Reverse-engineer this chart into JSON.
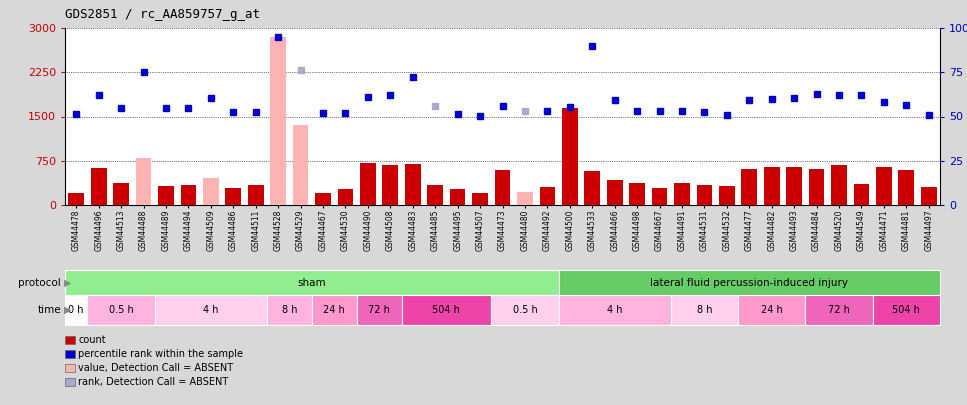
{
  "title": "GDS2851 / rc_AA859757_g_at",
  "samples": [
    "GSM44478",
    "GSM44496",
    "GSM44513",
    "GSM44488",
    "GSM44489",
    "GSM44494",
    "GSM44509",
    "GSM44486",
    "GSM44511",
    "GSM44528",
    "GSM44529",
    "GSM44467",
    "GSM44530",
    "GSM44490",
    "GSM44508",
    "GSM44483",
    "GSM44485",
    "GSM44495",
    "GSM44507",
    "GSM44473",
    "GSM44480",
    "GSM44492",
    "GSM44500",
    "GSM44533",
    "GSM44466",
    "GSM44498",
    "GSM44667",
    "GSM44491",
    "GSM44531",
    "GSM44532",
    "GSM44477",
    "GSM44482",
    "GSM44493",
    "GSM44484",
    "GSM44520",
    "GSM44549",
    "GSM44471",
    "GSM44481",
    "GSM44497"
  ],
  "count_values": [
    200,
    620,
    370,
    800,
    320,
    340,
    450,
    290,
    340,
    2850,
    1350,
    210,
    270,
    720,
    680,
    700,
    340,
    270,
    210,
    600,
    220,
    310,
    1650,
    580,
    420,
    380,
    290,
    370,
    340,
    320,
    610,
    640,
    650,
    610,
    680,
    360,
    650,
    600,
    300
  ],
  "absent_count": [
    false,
    false,
    false,
    true,
    false,
    false,
    true,
    false,
    false,
    true,
    true,
    false,
    false,
    false,
    false,
    false,
    false,
    false,
    false,
    false,
    true,
    false,
    false,
    false,
    false,
    false,
    false,
    false,
    false,
    false,
    false,
    false,
    false,
    false,
    false,
    false,
    false,
    false,
    false
  ],
  "rank_values": [
    1540,
    1870,
    1650,
    2250,
    1650,
    1650,
    1820,
    1570,
    1570,
    2850,
    2290,
    1560,
    1560,
    1830,
    1870,
    2170,
    1680,
    1550,
    1510,
    1680,
    1590,
    1590,
    1660,
    2700,
    1780,
    1600,
    1600,
    1600,
    1570,
    1530,
    1780,
    1790,
    1810,
    1880,
    1870,
    1860,
    1740,
    1700,
    1530
  ],
  "absent_rank": [
    false,
    false,
    false,
    false,
    false,
    false,
    false,
    false,
    false,
    false,
    true,
    false,
    false,
    false,
    false,
    false,
    true,
    false,
    false,
    false,
    true,
    false,
    false,
    false,
    false,
    false,
    false,
    false,
    false,
    false,
    false,
    false,
    false,
    false,
    false,
    false,
    false,
    false,
    false
  ],
  "protocol_groups": [
    {
      "label": "sham",
      "start": 0,
      "end": 22,
      "color": "#90EE90"
    },
    {
      "label": "lateral fluid percussion-induced injury",
      "start": 22,
      "end": 39,
      "color": "#66CC66"
    }
  ],
  "time_groups": [
    {
      "label": "0 h",
      "start": 0,
      "end": 1,
      "color": "#FFFFFF"
    },
    {
      "label": "0.5 h",
      "start": 1,
      "end": 4,
      "color": "#FFB3DE"
    },
    {
      "label": "4 h",
      "start": 4,
      "end": 9,
      "color": "#FFD0EE"
    },
    {
      "label": "8 h",
      "start": 9,
      "end": 11,
      "color": "#FFB3DE"
    },
    {
      "label": "24 h",
      "start": 11,
      "end": 13,
      "color": "#FF99CC"
    },
    {
      "label": "72 h",
      "start": 13,
      "end": 15,
      "color": "#EE66BB"
    },
    {
      "label": "504 h",
      "start": 15,
      "end": 19,
      "color": "#EE44AA"
    },
    {
      "label": "0.5 h",
      "start": 19,
      "end": 22,
      "color": "#FFD0EE"
    },
    {
      "label": "4 h",
      "start": 22,
      "end": 27,
      "color": "#FFB3DE"
    },
    {
      "label": "8 h",
      "start": 27,
      "end": 30,
      "color": "#FFD0EE"
    },
    {
      "label": "24 h",
      "start": 30,
      "end": 33,
      "color": "#FF99CC"
    },
    {
      "label": "72 h",
      "start": 33,
      "end": 36,
      "color": "#EE66BB"
    },
    {
      "label": "504 h",
      "start": 36,
      "end": 39,
      "color": "#EE44AA"
    }
  ],
  "ylim_left": [
    0,
    3000
  ],
  "ylim_right": [
    0,
    100
  ],
  "yticks_left": [
    0,
    750,
    1500,
    2250,
    3000
  ],
  "yticks_right": [
    0,
    25,
    50,
    75,
    100
  ],
  "bar_color_normal": "#CC0000",
  "bar_color_absent": "#FFB3B3",
  "dot_color_normal": "#0000CC",
  "dot_color_absent": "#AAAACC",
  "plot_bg": "#FFFFFF",
  "fig_bg": "#D8D8D8",
  "legend_items": [
    {
      "label": "count",
      "color": "#CC0000"
    },
    {
      "label": "percentile rank within the sample",
      "color": "#0000CC"
    },
    {
      "label": "value, Detection Call = ABSENT",
      "color": "#FFB3B3"
    },
    {
      "label": "rank, Detection Call = ABSENT",
      "color": "#AAAACC"
    }
  ]
}
